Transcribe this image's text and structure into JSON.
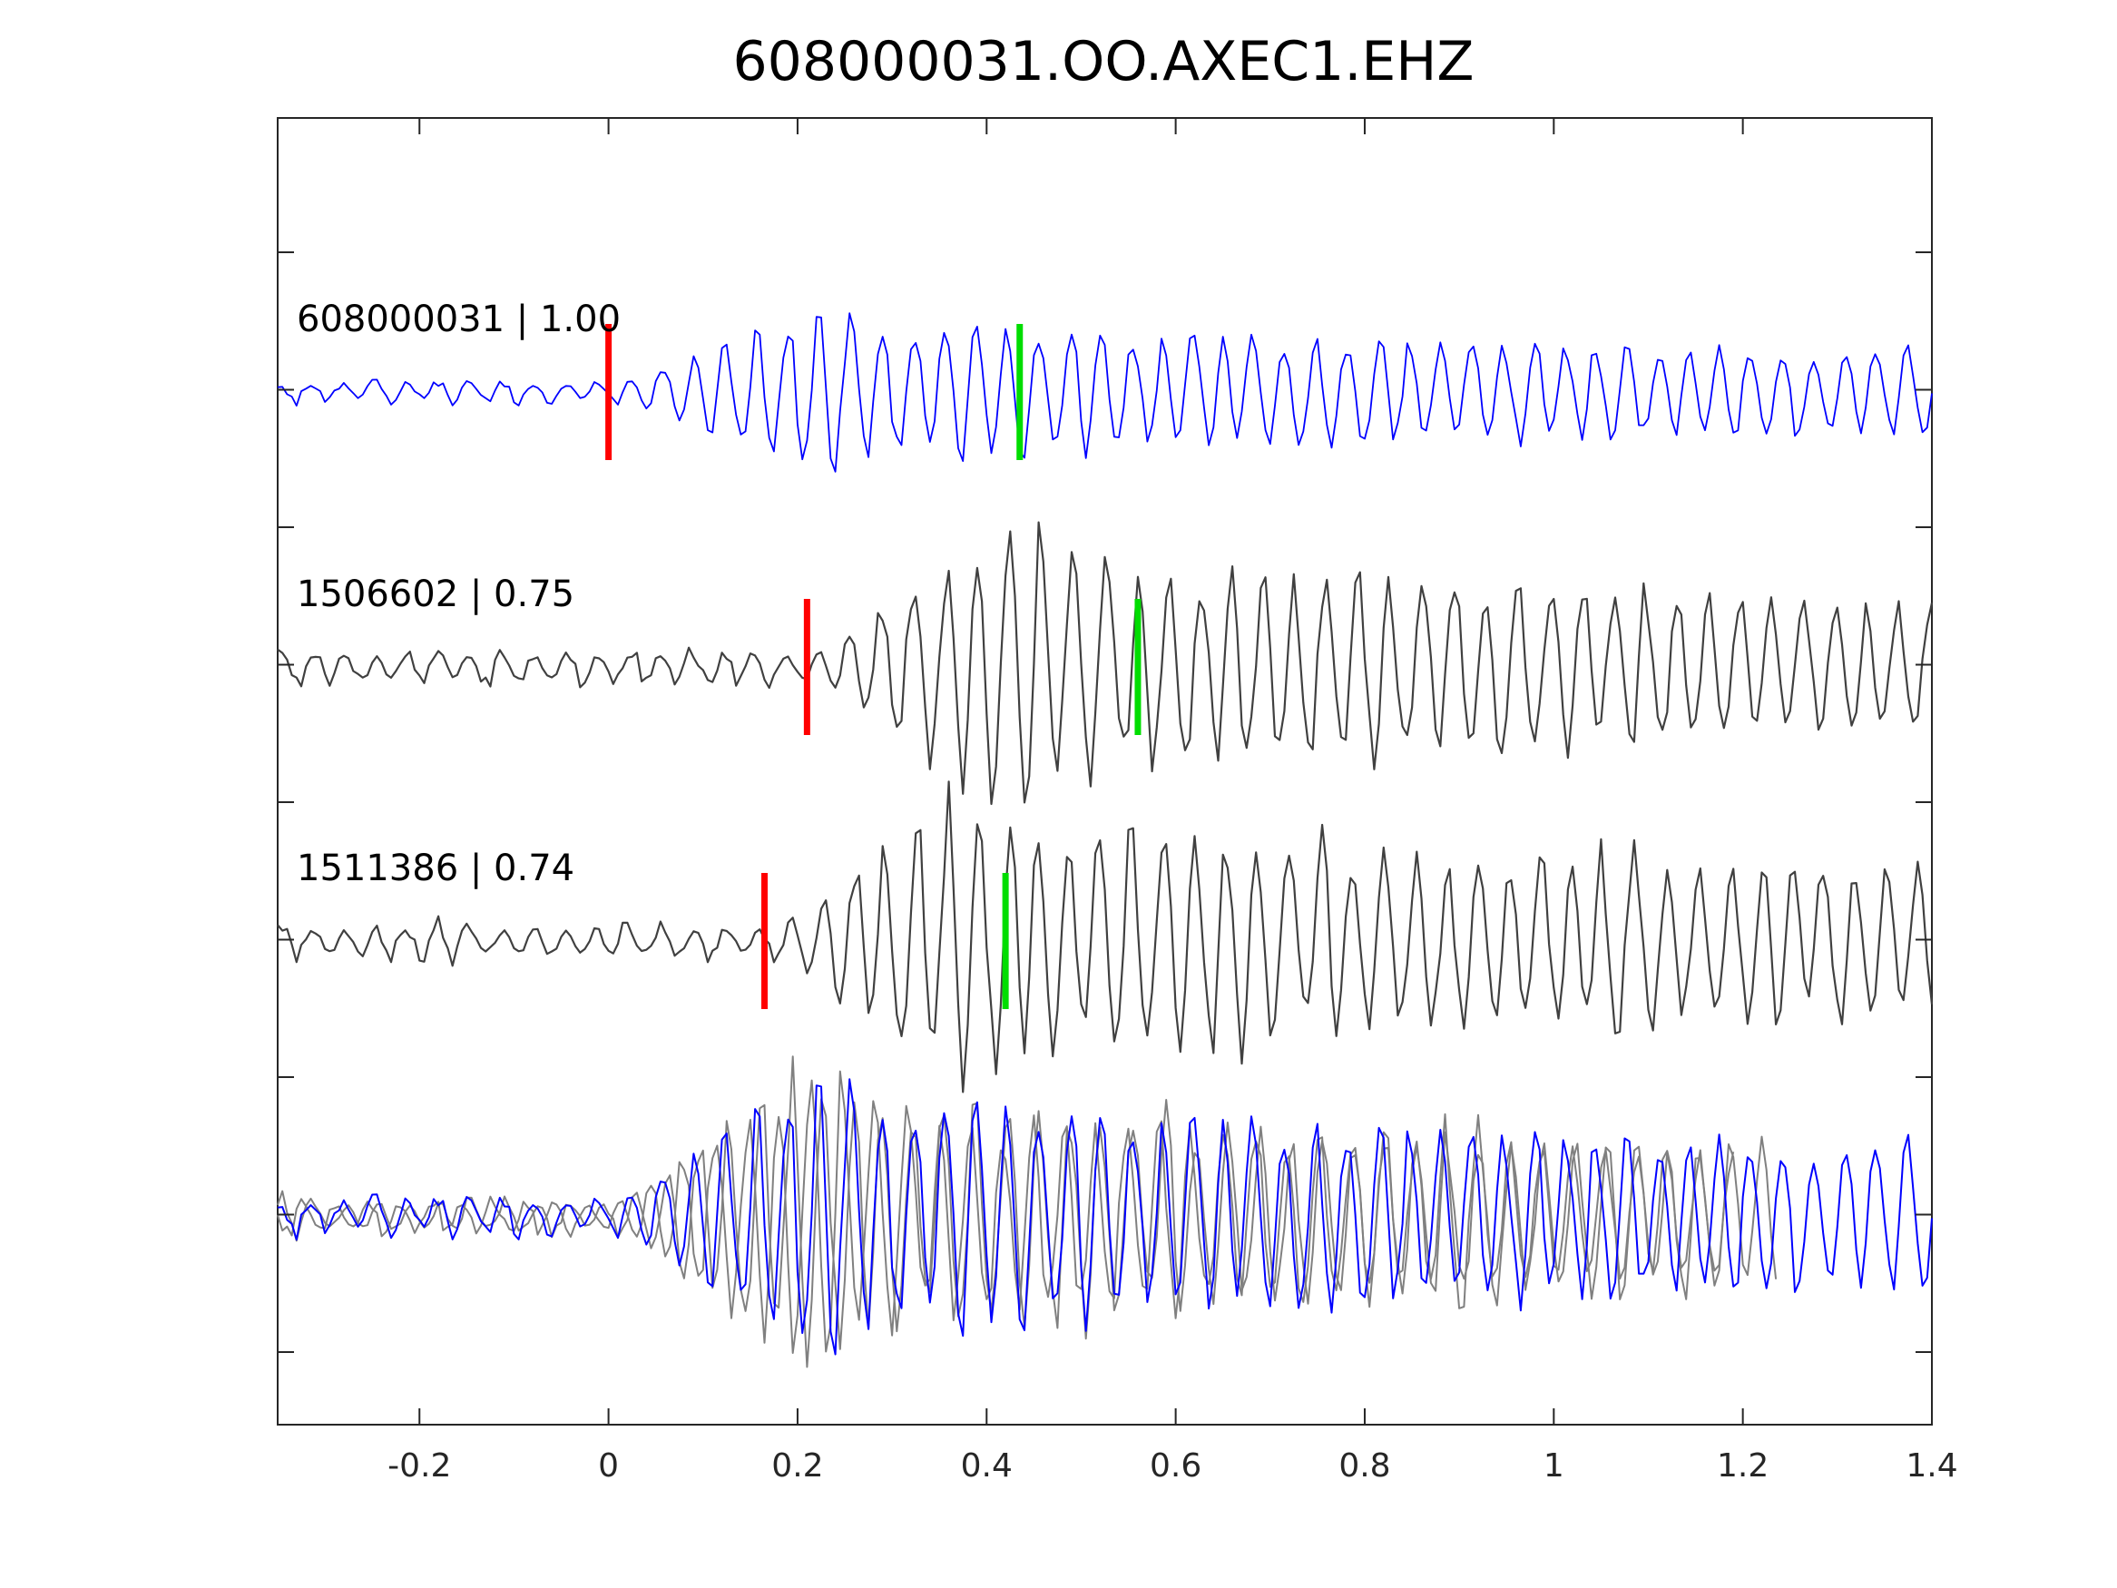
{
  "chart_data": {
    "type": "line",
    "title": "608000031.OO.AXEC1.EHZ",
    "xlabel": "",
    "ylabel": "",
    "xlim": [
      -0.35,
      1.4
    ],
    "xticks": [
      -0.2,
      0,
      0.2,
      0.4,
      0.6,
      0.8,
      1,
      1.2,
      1.4
    ],
    "xtick_labels": [
      "-0.2",
      "0",
      "0.2",
      "0.4",
      "0.6",
      "0.8",
      "1",
      "1.2",
      "1.4"
    ],
    "ytick_count": 9,
    "grid": false,
    "colors": {
      "reference_trace": "#0000ff",
      "matched_trace": "#404040",
      "overlay_trace": "#808080",
      "p_pick": "#ff0000",
      "s_pick": "#00dd00",
      "axes": "#262626"
    },
    "traces": [
      {
        "label": "608000031 | 1.00",
        "event_id": "608000031",
        "correlation": 1.0,
        "shift": 0.0,
        "p_pick": 0.0,
        "s_pick": 0.435,
        "color": "#0000ff"
      },
      {
        "label": "1506602 | 0.75",
        "event_id": "1506602",
        "correlation": 0.75,
        "shift": 0.21,
        "p_pick": 0.21,
        "s_pick": 0.56,
        "color": "#404040"
      },
      {
        "label": "1511386 | 0.74",
        "event_id": "1511386",
        "correlation": 0.74,
        "shift": 0.165,
        "p_pick": 0.165,
        "s_pick": 0.42,
        "color": "#404040"
      }
    ],
    "overlay": {
      "description_series": [
        "608000031",
        "1506602",
        "1511386"
      ],
      "aligned": true
    }
  }
}
